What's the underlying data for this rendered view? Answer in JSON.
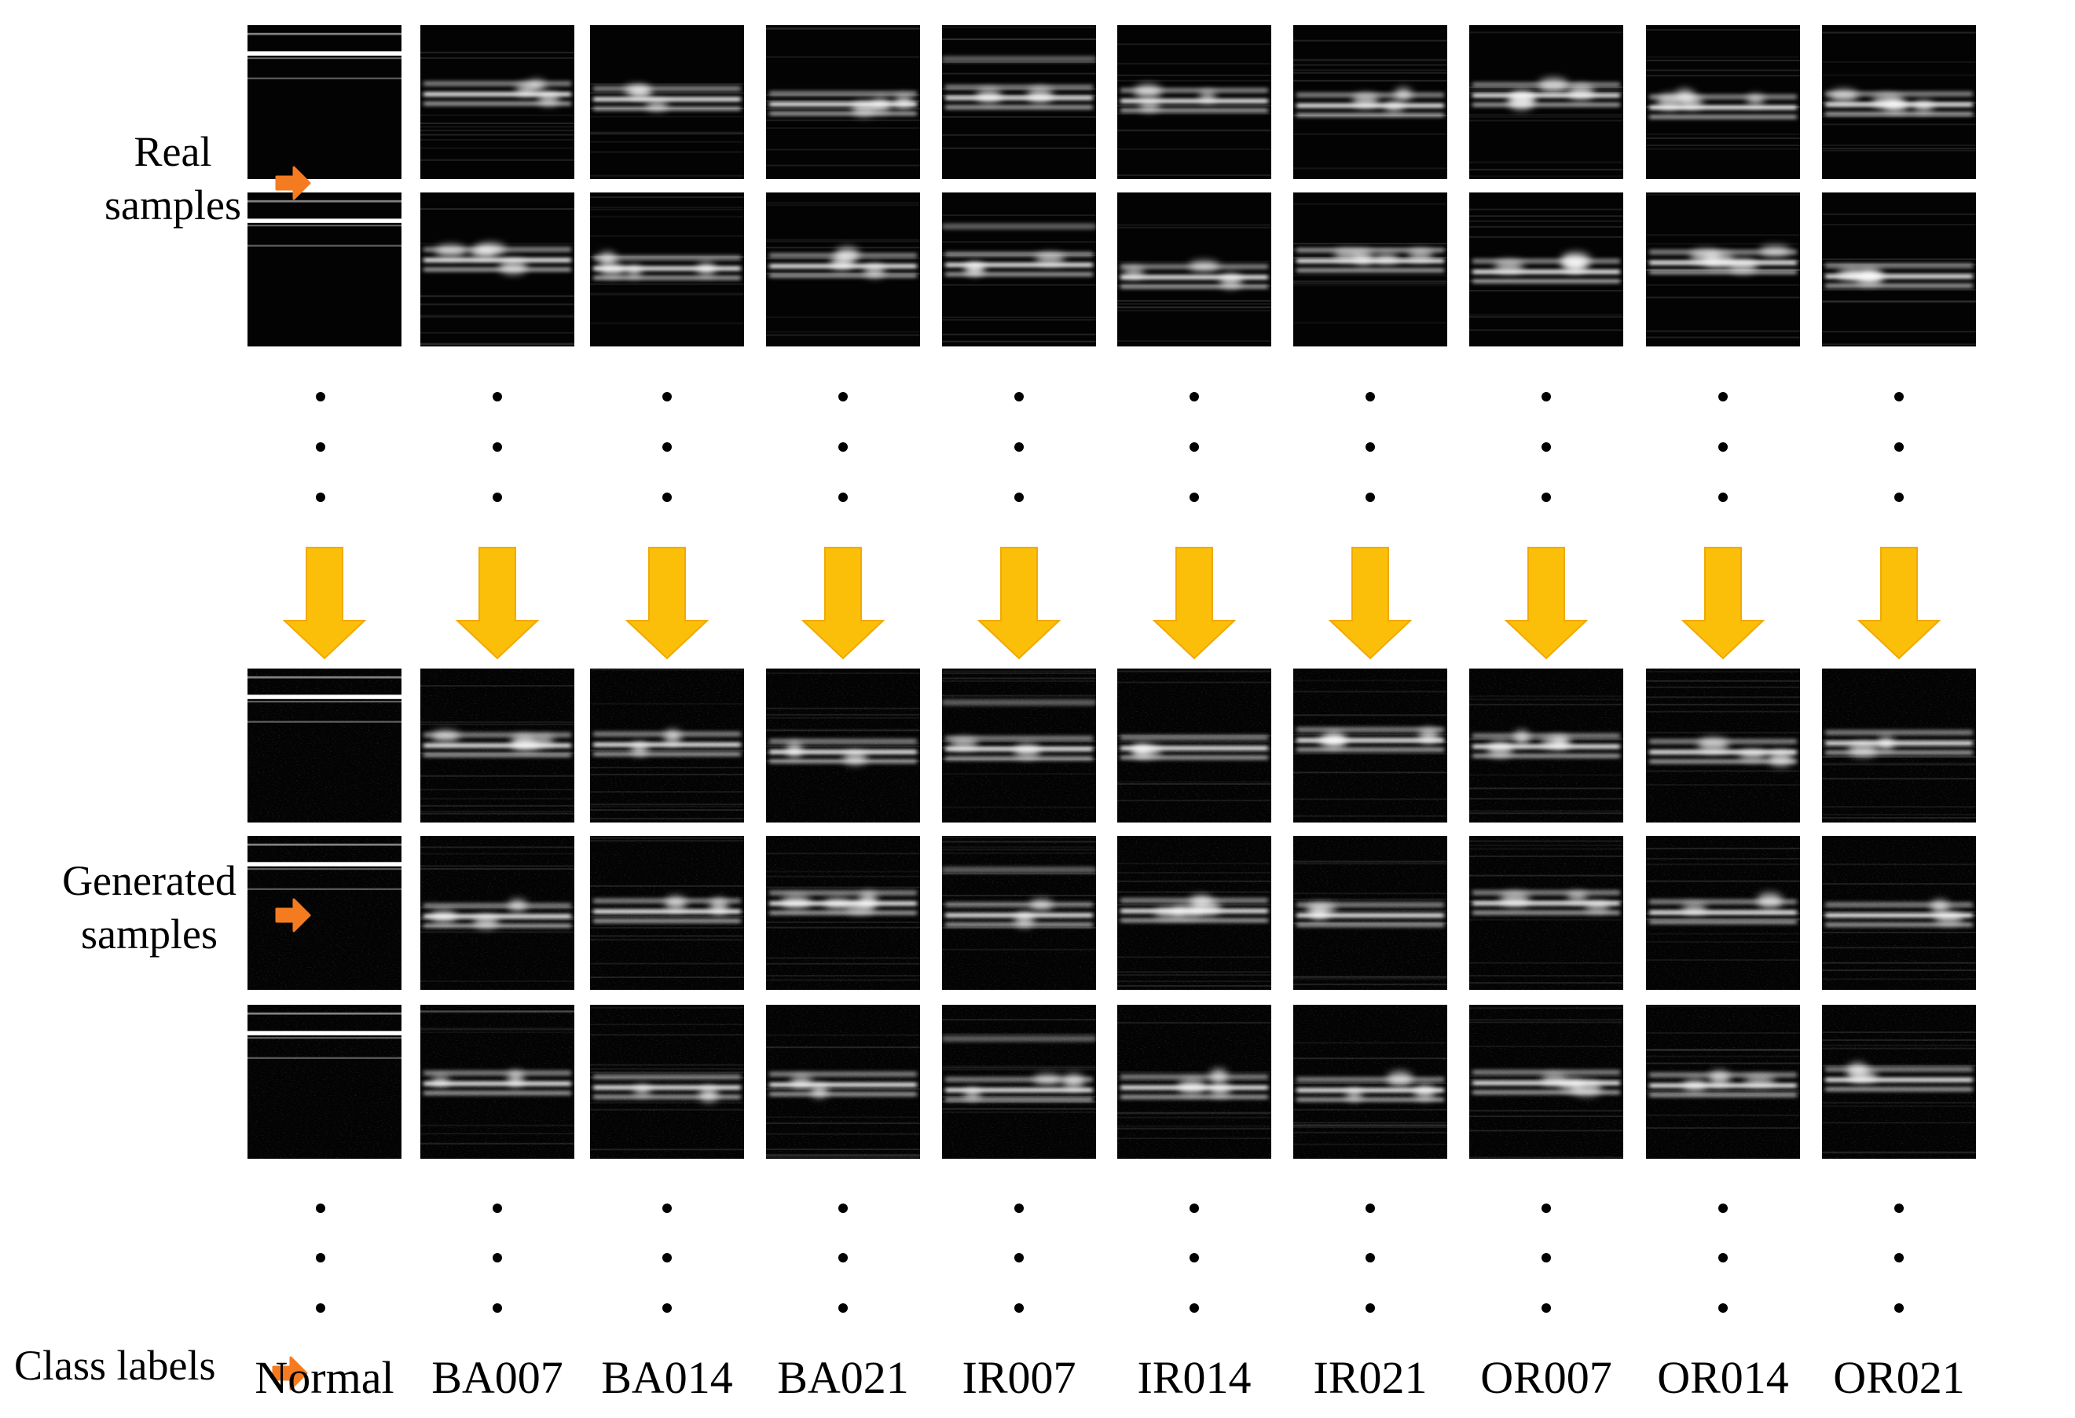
{
  "figure": {
    "real_label_line1": "Real",
    "real_label_line2": "samples",
    "generated_label_line1": "Generated",
    "generated_label_line2": "samples",
    "class_labels_title": "Class labels"
  },
  "classes": [
    "Normal",
    "BA007",
    "BA014",
    "BA021",
    "IR007",
    "IR014",
    "IR021",
    "OR007",
    "OR014",
    "OR021"
  ],
  "colors": {
    "pointer_arrow": "#f47b20",
    "down_arrow": "#fbbf0a",
    "down_arrow_edge": "#f2a900",
    "sample_background": "#030303",
    "signal_band": "#ffffff"
  },
  "icons": {
    "pointer": "orange-right-arrow-icon",
    "flow": "yellow-down-arrow-icon"
  },
  "samples": {
    "real_rows": 2,
    "generated_rows": 3
  }
}
